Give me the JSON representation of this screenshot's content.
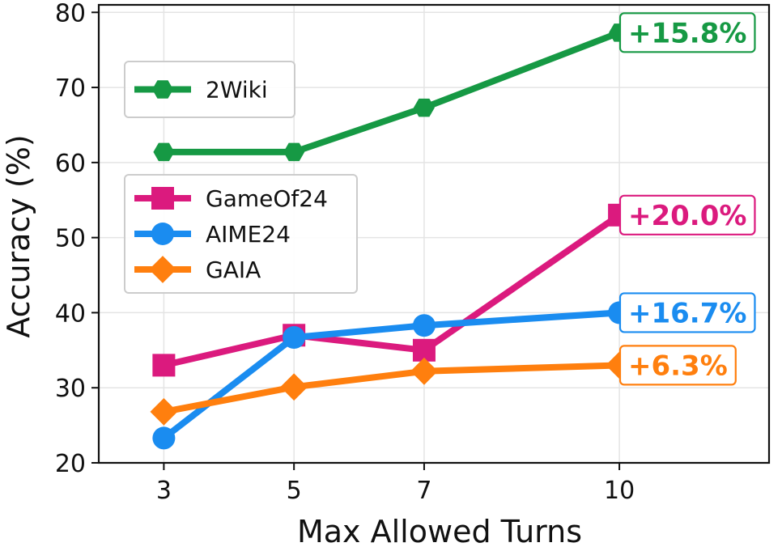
{
  "chart_data": {
    "type": "line",
    "xlabel": "Max Allowed Turns",
    "ylabel": "Accuracy (%)",
    "x": [
      3,
      5,
      7,
      10
    ],
    "xlim": [
      2.0,
      12.3
    ],
    "ylim": [
      20,
      81
    ],
    "yticks": [
      20,
      30,
      40,
      50,
      60,
      70,
      80
    ],
    "grid": true,
    "legends": [
      {
        "placement": "upper-left",
        "entries": [
          "2Wiki"
        ]
      },
      {
        "placement": "center-left",
        "entries": [
          "GameOf24",
          "AIME24",
          "GAIA"
        ]
      }
    ],
    "series": [
      {
        "name": "2Wiki",
        "values": [
          61.4,
          61.4,
          67.3,
          77.3
        ],
        "color": "#169944",
        "marker": "hexagon",
        "gain": "+15.8%"
      },
      {
        "name": "GameOf24",
        "values": [
          33.0,
          37.0,
          35.0,
          53.0
        ],
        "color": "#db1a7e",
        "marker": "square",
        "gain": "+20.0%"
      },
      {
        "name": "AIME24",
        "values": [
          23.3,
          36.7,
          38.3,
          40.0
        ],
        "color": "#1a8cf0",
        "marker": "circle",
        "gain": "+16.7%"
      },
      {
        "name": "GAIA",
        "values": [
          26.8,
          30.1,
          32.2,
          33.0
        ],
        "color": "#ff7f0e",
        "marker": "diamond",
        "gain": "+6.3%"
      }
    ]
  }
}
